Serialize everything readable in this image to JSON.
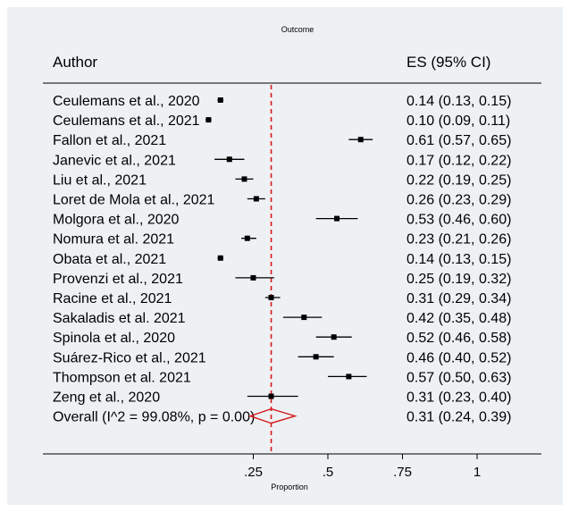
{
  "chart_data": {
    "type": "forest",
    "title": "Outcome",
    "column_headers": {
      "study": "Author",
      "estimate": "ES (95% CI)"
    },
    "xlabel": "Proportion",
    "xlim": [
      0,
      1
    ],
    "xticks": [
      ".25",
      ".5",
      ".75",
      "1"
    ],
    "xtick_values": [
      0.25,
      0.5,
      0.75,
      1
    ],
    "reference_line": {
      "value": 0.31,
      "color": "#d7191c",
      "style": "dashed"
    },
    "studies": [
      {
        "author": "Ceulemans et al., 2020",
        "es": 0.14,
        "lo": 0.13,
        "hi": 0.15,
        "label": "0.14 (0.13, 0.15)"
      },
      {
        "author": "Ceulemans et al., 2021",
        "es": 0.1,
        "lo": 0.09,
        "hi": 0.11,
        "label": "0.10 (0.09, 0.11)"
      },
      {
        "author": "Fallon et al., 2021",
        "es": 0.61,
        "lo": 0.57,
        "hi": 0.65,
        "label": "0.61 (0.57, 0.65)"
      },
      {
        "author": "Janevic et al., 2021",
        "es": 0.17,
        "lo": 0.12,
        "hi": 0.22,
        "label": "0.17 (0.12, 0.22)"
      },
      {
        "author": "Liu et al., 2021",
        "es": 0.22,
        "lo": 0.19,
        "hi": 0.25,
        "label": "0.22 (0.19, 0.25)"
      },
      {
        "author": "Loret de Mola et al., 2021",
        "es": 0.26,
        "lo": 0.23,
        "hi": 0.29,
        "label": "0.26 (0.23, 0.29)"
      },
      {
        "author": "Molgora et al., 2020",
        "es": 0.53,
        "lo": 0.46,
        "hi": 0.6,
        "label": "0.53 (0.46, 0.60)"
      },
      {
        "author": "Nomura et al. 2021",
        "es": 0.23,
        "lo": 0.21,
        "hi": 0.26,
        "label": "0.23 (0.21, 0.26)"
      },
      {
        "author": "Obata et al., 2021",
        "es": 0.14,
        "lo": 0.13,
        "hi": 0.15,
        "label": "0.14 (0.13, 0.15)"
      },
      {
        "author": "Provenzi et al., 2021",
        "es": 0.25,
        "lo": 0.19,
        "hi": 0.32,
        "label": "0.25 (0.19, 0.32)"
      },
      {
        "author": "Racine et al., 2021",
        "es": 0.31,
        "lo": 0.29,
        "hi": 0.34,
        "label": "0.31 (0.29, 0.34)"
      },
      {
        "author": "Sakaladis et al. 2021",
        "es": 0.42,
        "lo": 0.35,
        "hi": 0.48,
        "label": "0.42 (0.35, 0.48)"
      },
      {
        "author": "Spinola et al., 2020",
        "es": 0.52,
        "lo": 0.46,
        "hi": 0.58,
        "label": "0.52 (0.46, 0.58)"
      },
      {
        "author": "Suárez-Rico et al., 2021",
        "es": 0.46,
        "lo": 0.4,
        "hi": 0.52,
        "label": "0.46 (0.40, 0.52)"
      },
      {
        "author": "Thompson et al. 2021",
        "es": 0.57,
        "lo": 0.5,
        "hi": 0.63,
        "label": "0.57 (0.50, 0.63)"
      },
      {
        "author": "Zeng et al., 2020",
        "es": 0.31,
        "lo": 0.23,
        "hi": 0.4,
        "label": "0.31 (0.23, 0.40)"
      }
    ],
    "overall": {
      "author": "Overall  (I^2 = 99.08%, p = 0.00)",
      "es": 0.31,
      "lo": 0.24,
      "hi": 0.39,
      "label": "0.31 (0.24, 0.39)",
      "color": "#d7191c"
    },
    "grid": false,
    "legend": "none"
  }
}
